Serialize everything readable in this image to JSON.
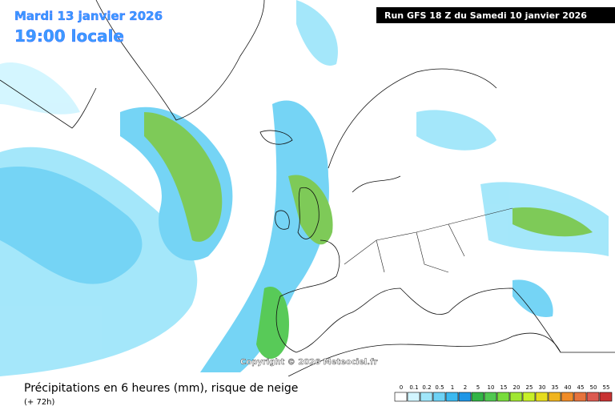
{
  "header": {
    "date": "Mardi 13 janvier 2026",
    "time": "19:00 locale",
    "run": "Run GFS 18 Z du Samedi 10 janvier 2026"
  },
  "copyright": "Copyright © 2026 Meteociel.fr",
  "footer": {
    "title": "Précipitations en 6 heures (mm), risque de neige",
    "lead": "(+ 72h)"
  },
  "legend": {
    "values": [
      0,
      0.1,
      0.2,
      0.5,
      1,
      2,
      5,
      10,
      15,
      20,
      25,
      30,
      35,
      40,
      45,
      50,
      55
    ],
    "colors": [
      "#ffffff",
      "#d2f5ff",
      "#a0e6fa",
      "#6ed2f5",
      "#3cb9f0",
      "#1e96e6",
      "#32b446",
      "#50c850",
      "#78dc3c",
      "#a0e632",
      "#c8f028",
      "#e6dc1e",
      "#f0b41e",
      "#f08c28",
      "#e6733c",
      "#dc5a50",
      "#c83232"
    ]
  }
}
